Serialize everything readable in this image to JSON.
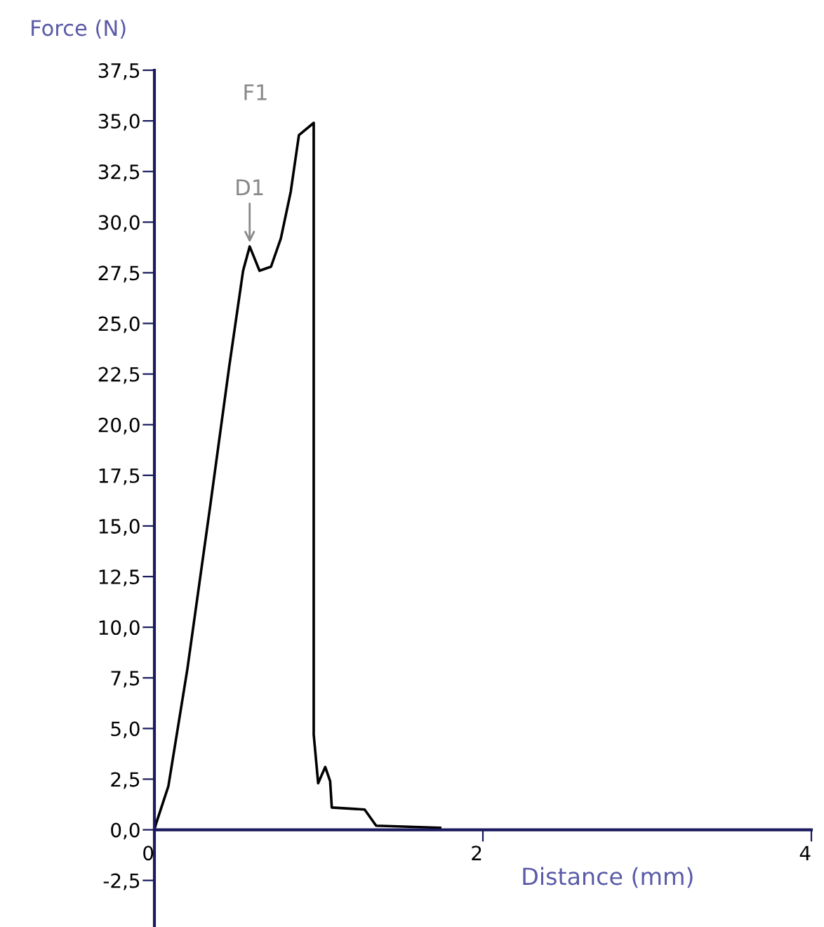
{
  "chart_data": {
    "type": "line",
    "xlabel": "Distance (mm)",
    "ylabel": "Force (N)",
    "x": [
      0,
      0.01,
      0.085,
      0.2,
      0.34,
      0.456,
      0.54,
      0.58,
      0.64,
      0.71,
      0.77,
      0.83,
      0.88,
      0.97,
      0.97,
      0.997,
      1.04,
      1.07,
      1.08,
      1.28,
      1.35,
      1.74
    ],
    "series": [
      {
        "color": "#000000",
        "values": [
          0,
          0.3,
          2.15,
          7.9,
          16.0,
          22.9,
          27.6,
          28.8,
          27.6,
          27.8,
          29.2,
          31.5,
          34.3,
          34.9,
          4.7,
          2.3,
          3.1,
          2.4,
          1.1,
          1.0,
          0.2,
          0.1
        ]
      }
    ],
    "xlim": [
      0,
      4
    ],
    "xticks": [
      0,
      2,
      4
    ],
    "ylim": [
      -4.8,
      37.5
    ],
    "yticks": [
      {
        "value": -2.5,
        "label": "-2,5"
      },
      {
        "value": 0,
        "label": "0,0"
      },
      {
        "value": 2.5,
        "label": "2,5"
      },
      {
        "value": 5,
        "label": "5,0"
      },
      {
        "value": 7.5,
        "label": "7,5"
      },
      {
        "value": 10,
        "label": "10,0"
      },
      {
        "value": 12.5,
        "label": "12,5"
      },
      {
        "value": 15,
        "label": "15,0"
      },
      {
        "value": 17.5,
        "label": "17,5"
      },
      {
        "value": 20,
        "label": "20,0"
      },
      {
        "value": 22.5,
        "label": "22,5"
      },
      {
        "value": 25,
        "label": "25,0"
      },
      {
        "value": 27.5,
        "label": "27,5"
      },
      {
        "value": 30,
        "label": "30,0"
      },
      {
        "value": 32.5,
        "label": "32,5"
      },
      {
        "value": 35,
        "label": "35,0"
      },
      {
        "value": 37.5,
        "label": "37,5"
      }
    ],
    "annotations": [
      {
        "text": "D1",
        "x": 0.58,
        "y": 28.8
      },
      "F1"
    ],
    "grid": false,
    "legend": false,
    "marker": "none",
    "line_style": "solid"
  }
}
